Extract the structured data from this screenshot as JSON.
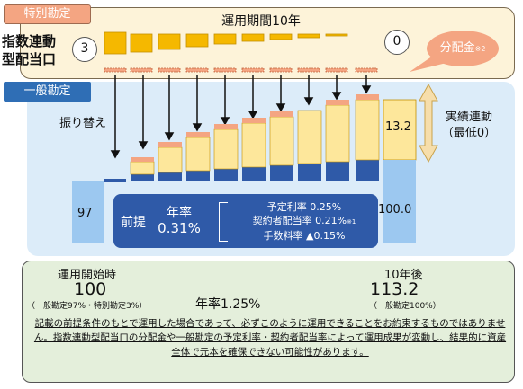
{
  "special_account": {
    "tab_label": "特別勘定",
    "index_label": "指数連動\n型配当口",
    "start_value": "3",
    "end_value": "0",
    "period_title": "運用期間10年",
    "dividend_label": "分配金",
    "dividend_note": "※2"
  },
  "general_account": {
    "tab_label": "一般勘定",
    "transfer_label": "振り替え",
    "start_value": "97",
    "end_value": "100.0",
    "linked_value": "13.2",
    "linked_label": "実績連動\n（最低0）"
  },
  "premise": {
    "label": "前提",
    "rate_title": "年率",
    "rate_value": "0.31%",
    "lines": [
      "予定利率 0.25%",
      "契約者配当率 0.21%",
      "手数料率 ▲0.15%"
    ],
    "line_note": "※1"
  },
  "summary": {
    "start_title": "運用開始時",
    "start_value": "100",
    "start_note": "（一般勘定97%・特別勘定3%）",
    "annual_rate": "年率1.25%",
    "end_title": "10年後",
    "end_value": "113.2",
    "end_note": "（一般勘定100%）"
  },
  "disclaimer": "記載の前提条件のもとで運用した場合であって、必ずこのように運用できることをお約束するものではありません。指数連動型配当口の分配金や一般勘定の予定利率・契約者配当率によって運用成果が変動し、結果的に資産全体で元本を確保できない可能性があります。",
  "colors": {
    "special_fill": "#f5b800",
    "peach": "#f4a582",
    "yellow_bar": "#fde79b",
    "blue_dark": "#2f5aa8",
    "blue_light": "#9cc8f0"
  }
}
